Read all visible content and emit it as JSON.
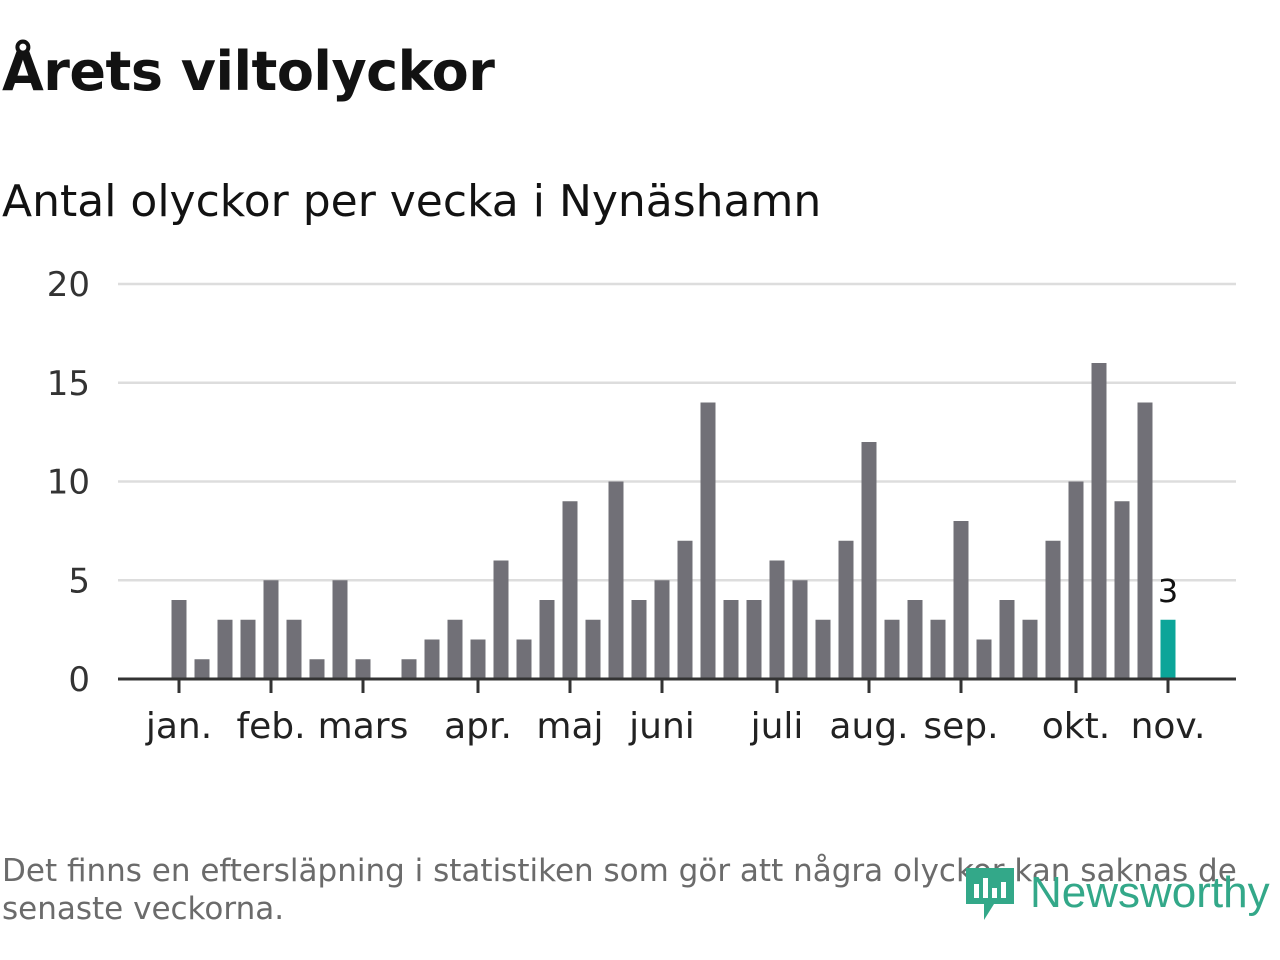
{
  "title": "Årets viltolyckor",
  "subtitle": "Antal olyckor per vecka i Nynäshamn",
  "footnote": "Det finns en eftersläpning i statistiken som gör att några olyckor kan saknas de senaste veckorna.",
  "brand": {
    "name": "Newsworthy",
    "icon": "newsworthy-logo-icon",
    "color": "#33a889"
  },
  "colors": {
    "bar": "#717077",
    "highlight": "#0ca599",
    "grid": "#dddddd",
    "axis": "#333333"
  },
  "chart_data": {
    "type": "bar",
    "title": "Antal olyckor per vecka i Nynäshamn",
    "xlabel": "",
    "ylabel": "",
    "ylim": [
      0,
      20
    ],
    "yticks": [
      0,
      5,
      10,
      15,
      20
    ],
    "grid": true,
    "week_start": 1,
    "values": [
      4,
      1,
      3,
      3,
      5,
      3,
      1,
      5,
      1,
      0,
      1,
      2,
      3,
      2,
      6,
      2,
      4,
      9,
      3,
      10,
      4,
      5,
      7,
      14,
      4,
      4,
      6,
      5,
      3,
      7,
      12,
      3,
      4,
      3,
      8,
      2,
      4,
      3,
      7,
      10,
      16,
      9,
      14,
      3
    ],
    "highlight_index": 43,
    "highlight_label": "3",
    "month_ticks": [
      {
        "label": "jan.",
        "week": 1
      },
      {
        "label": "feb.",
        "week": 5
      },
      {
        "label": "mars",
        "week": 9
      },
      {
        "label": "apr.",
        "week": 14
      },
      {
        "label": "maj",
        "week": 18
      },
      {
        "label": "juni",
        "week": 22
      },
      {
        "label": "juli",
        "week": 27
      },
      {
        "label": "aug.",
        "week": 31
      },
      {
        "label": "sep.",
        "week": 35
      },
      {
        "label": "okt.",
        "week": 40
      },
      {
        "label": "nov.",
        "week": 44
      }
    ]
  }
}
